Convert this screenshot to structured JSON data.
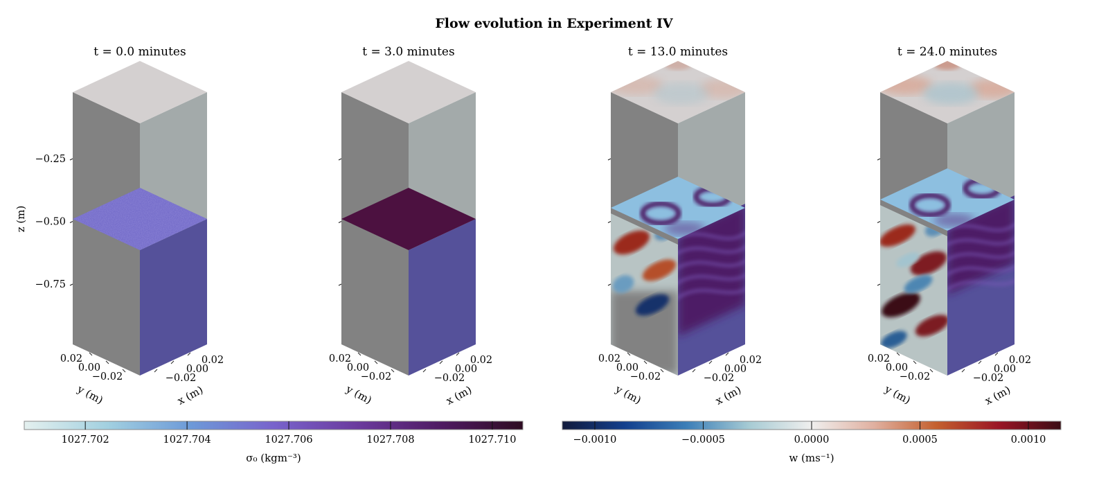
{
  "figure": {
    "title": "Flow evolution in Experiment IV"
  },
  "chart_data": {
    "type": "3d-volume",
    "panels": [
      {
        "title": "t = 0.0 minutes",
        "time_minutes": 0.0,
        "interface_state": "random noise",
        "surface_state": "uniform"
      },
      {
        "title": "t = 3.0 minutes",
        "time_minutes": 3.0,
        "interface_state": "flat dense layer",
        "surface_state": "uniform"
      },
      {
        "title": "t = 13.0 minutes",
        "time_minutes": 13.0,
        "interface_state": "eddies forming",
        "surface_state": "weak w pattern"
      },
      {
        "title": "t = 24.0 minutes",
        "time_minutes": 24.0,
        "interface_state": "turbulent mixing",
        "surface_state": "w pattern"
      }
    ],
    "z_axis": {
      "label": "z (m)",
      "ticks": [
        -0.25,
        -0.5,
        -0.75
      ],
      "tick_labels": [
        "−0.25",
        "−0.50",
        "−0.75"
      ]
    },
    "y_axis": {
      "label": "y (m)",
      "tick_labels": [
        "0.02",
        "0.00",
        "−0.02"
      ]
    },
    "x_axis": {
      "label": "x (m)",
      "tick_labels": [
        "0.02",
        "0.00",
        "−0.02"
      ]
    },
    "colorbars": [
      {
        "label": "σ₀ (kgm⁻³)",
        "tick_labels": [
          "1027.702",
          "1027.704",
          "1027.706",
          "1027.708",
          "1027.710"
        ],
        "ticks": [
          1027.702,
          1027.704,
          1027.706,
          1027.708,
          1027.71
        ],
        "range": [
          1027.7008,
          1027.7106
        ],
        "colormap": [
          "#e4f0ef",
          "#a2d0e0",
          "#6d9ad8",
          "#7863cc",
          "#6b3b9e",
          "#4f1b63",
          "#2e0c22"
        ]
      },
      {
        "label": "w (ms⁻¹)",
        "tick_labels": [
          "−0.0010",
          "−0.0005",
          "0.0000",
          "0.0005",
          "0.0010"
        ],
        "ticks": [
          -0.001,
          -0.0005,
          0.0,
          0.0005,
          0.001
        ],
        "range": [
          -0.00115,
          0.00115
        ],
        "colormap": [
          "#111a3b",
          "#123f8d",
          "#3c7fb8",
          "#a7cbd4",
          "#f0efee",
          "#e0b0a0",
          "#c4602e",
          "#9a1525",
          "#3b0c14"
        ]
      }
    ]
  },
  "colors": {
    "grey_face": "#828282",
    "top_face": "#d4d0d0",
    "right_upper": "#a3aaaa",
    "right_lower": "#55519a",
    "interface_purple": "#4c1140",
    "noise_base": "#6a62c4"
  }
}
